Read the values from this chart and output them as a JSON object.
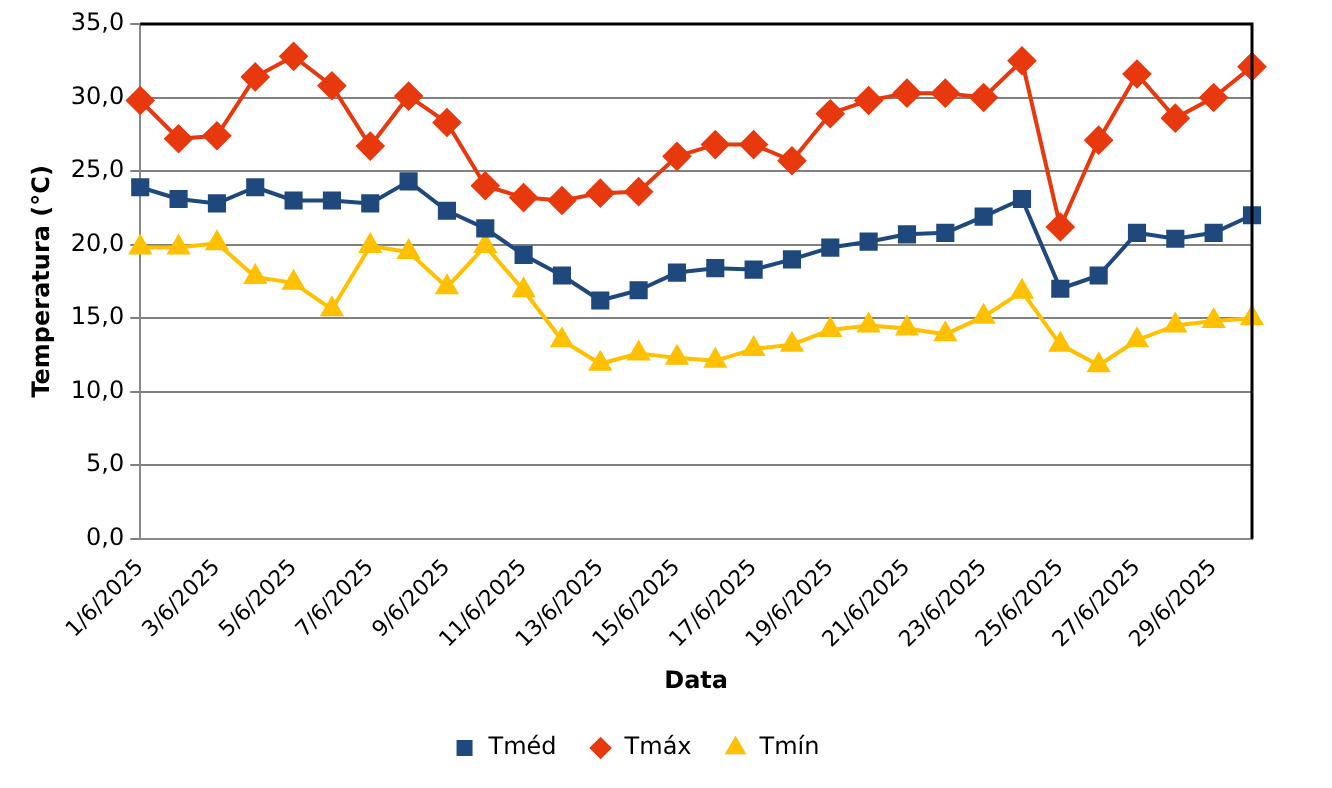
{
  "chart_data": {
    "type": "line",
    "xlabel": "Data",
    "ylabel": "Temperatura (°C)",
    "categories": [
      "1/6/2025",
      null,
      "3/6/2025",
      null,
      "5/6/2025",
      null,
      "7/6/2025",
      null,
      "9/6/2025",
      null,
      "11/6/2025",
      null,
      "13/6/2025",
      null,
      "15/6/2025",
      null,
      "17/6/2025",
      null,
      "19/6/2025",
      null,
      "21/6/2025",
      null,
      "23/6/2025",
      null,
      "25/6/2025",
      null,
      "27/6/2025",
      null,
      "29/6/2025",
      null
    ],
    "series": [
      {
        "name": "Tméd",
        "color": "#1f497d",
        "marker": "square",
        "values": [
          23.9,
          23.1,
          22.8,
          23.9,
          23.0,
          23.0,
          22.8,
          24.3,
          22.3,
          21.1,
          19.3,
          17.9,
          16.2,
          16.9,
          18.1,
          18.4,
          18.3,
          19.0,
          19.8,
          20.2,
          20.7,
          20.8,
          21.9,
          23.1,
          17.0,
          17.9,
          20.8,
          20.4,
          20.8,
          22.0
        ]
      },
      {
        "name": "Tmáx",
        "color": "#e8380d",
        "marker": "diamond",
        "values": [
          29.8,
          27.2,
          27.4,
          31.4,
          32.8,
          30.8,
          26.7,
          30.1,
          28.3,
          24.0,
          23.2,
          23.0,
          23.5,
          23.6,
          26.0,
          26.8,
          26.8,
          25.7,
          28.9,
          29.8,
          30.3,
          30.3,
          30.0,
          32.5,
          21.2,
          27.1,
          31.6,
          28.6,
          30.0,
          32.1
        ]
      },
      {
        "name": "Tmín",
        "color": "#ffc000",
        "marker": "triangle",
        "values": [
          19.8,
          19.8,
          20.1,
          17.8,
          17.4,
          15.6,
          19.9,
          19.5,
          17.1,
          19.9,
          16.9,
          13.5,
          11.9,
          12.6,
          12.3,
          12.1,
          12.9,
          13.2,
          14.2,
          14.5,
          14.3,
          13.9,
          15.1,
          16.8,
          13.2,
          11.8,
          13.5,
          14.5,
          14.8,
          15.0
        ]
      }
    ],
    "ylim": [
      0,
      35
    ],
    "yticks": [
      {
        "value": 0,
        "label": "0,0"
      },
      {
        "value": 5,
        "label": "5,0"
      },
      {
        "value": 10,
        "label": "10,0"
      },
      {
        "value": 15,
        "label": "15,0"
      },
      {
        "value": 20,
        "label": "20,0"
      },
      {
        "value": 25,
        "label": "25,0"
      },
      {
        "value": 30,
        "label": "30,0"
      },
      {
        "value": 35,
        "label": "35,0"
      }
    ],
    "grid": "y",
    "legend": "bottom",
    "line_style": "solid"
  }
}
